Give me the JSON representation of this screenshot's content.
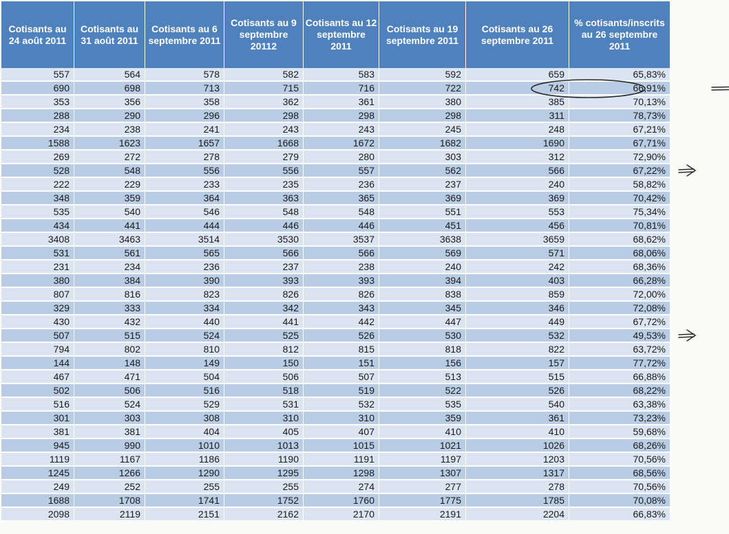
{
  "headers": [
    "Cotisants au 24 août 2011",
    "Cotisants au 31 août 2011",
    "Cotisants au 6 septembre 2011",
    "Cotisants au 9 septembre 20112",
    "Cotisants au 12 septembre 2011",
    "Cotisants au 19 septembre 2011",
    "Cotisants au 26 septembre 2011",
    "% cotisants/inscrits au 26 septembre 2011"
  ],
  "rows": [
    [
      "557",
      "564",
      "578",
      "582",
      "583",
      "592",
      "659",
      "65,83%"
    ],
    [
      "690",
      "698",
      "713",
      "715",
      "716",
      "722",
      "742",
      "66,91%"
    ],
    [
      "353",
      "356",
      "358",
      "362",
      "361",
      "380",
      "385",
      "70,13%"
    ],
    [
      "288",
      "290",
      "296",
      "298",
      "298",
      "298",
      "311",
      "78,73%"
    ],
    [
      "234",
      "238",
      "241",
      "243",
      "243",
      "245",
      "248",
      "67,21%"
    ],
    [
      "1588",
      "1623",
      "1657",
      "1668",
      "1672",
      "1682",
      "1690",
      "67,71%"
    ],
    [
      "269",
      "272",
      "278",
      "279",
      "280",
      "303",
      "312",
      "72,90%"
    ],
    [
      "528",
      "548",
      "556",
      "556",
      "557",
      "562",
      "566",
      "67,22%"
    ],
    [
      "222",
      "229",
      "233",
      "235",
      "236",
      "237",
      "240",
      "58,82%"
    ],
    [
      "348",
      "359",
      "364",
      "363",
      "365",
      "369",
      "369",
      "70,42%"
    ],
    [
      "535",
      "540",
      "546",
      "548",
      "548",
      "551",
      "553",
      "75,34%"
    ],
    [
      "434",
      "441",
      "444",
      "446",
      "446",
      "451",
      "456",
      "70,81%"
    ],
    [
      "3408",
      "3463",
      "3514",
      "3530",
      "3537",
      "3638",
      "3659",
      "68,62%"
    ],
    [
      "531",
      "561",
      "565",
      "566",
      "566",
      "569",
      "571",
      "68,06%"
    ],
    [
      "231",
      "234",
      "236",
      "237",
      "238",
      "240",
      "242",
      "68,36%"
    ],
    [
      "380",
      "384",
      "390",
      "393",
      "393",
      "394",
      "403",
      "66,28%"
    ],
    [
      "807",
      "816",
      "823",
      "826",
      "826",
      "838",
      "859",
      "72,00%"
    ],
    [
      "329",
      "333",
      "334",
      "342",
      "343",
      "345",
      "346",
      "72,08%"
    ],
    [
      "430",
      "432",
      "440",
      "441",
      "442",
      "447",
      "449",
      "67,72%"
    ],
    [
      "507",
      "515",
      "524",
      "525",
      "526",
      "530",
      "532",
      "49,53%"
    ],
    [
      "794",
      "802",
      "810",
      "812",
      "815",
      "818",
      "822",
      "63,72%"
    ],
    [
      "144",
      "148",
      "149",
      "150",
      "151",
      "156",
      "157",
      "77,72%"
    ],
    [
      "467",
      "471",
      "504",
      "506",
      "507",
      "513",
      "515",
      "66,88%"
    ],
    [
      "502",
      "506",
      "516",
      "518",
      "519",
      "522",
      "526",
      "68,22%"
    ],
    [
      "516",
      "524",
      "529",
      "531",
      "532",
      "535",
      "540",
      "63,38%"
    ],
    [
      "301",
      "303",
      "308",
      "310",
      "310",
      "359",
      "361",
      "73,23%"
    ],
    [
      "381",
      "381",
      "404",
      "405",
      "407",
      "410",
      "410",
      "59,68%"
    ],
    [
      "945",
      "990",
      "1010",
      "1013",
      "1015",
      "1021",
      "1026",
      "68,26%"
    ],
    [
      "1119",
      "1167",
      "1186",
      "1190",
      "1191",
      "1197",
      "1203",
      "70,56%"
    ],
    [
      "1245",
      "1266",
      "1290",
      "1295",
      "1298",
      "1307",
      "1317",
      "68,56%"
    ],
    [
      "249",
      "252",
      "255",
      "255",
      "274",
      "277",
      "278",
      "70,56%"
    ],
    [
      "1688",
      "1708",
      "1741",
      "1752",
      "1760",
      "1775",
      "1785",
      "70,08%"
    ],
    [
      "2098",
      "2119",
      "2151",
      "2162",
      "2170",
      "2191",
      "2204",
      "66,83%"
    ]
  ],
  "annotations": {
    "circled": {
      "row": 1,
      "cols": [
        6,
        7
      ]
    },
    "arrows": [
      {
        "row": 1,
        "style": "hand-drawn-arrow"
      },
      {
        "row": 7,
        "style": "hand-drawn-arrow"
      },
      {
        "row": 19,
        "style": "hand-drawn-arrow"
      }
    ]
  },
  "colors": {
    "header": "#4f81bd",
    "row_light": "#dbe5f1",
    "row_dark": "#b8cce4",
    "ink": "#2a2a2a"
  }
}
